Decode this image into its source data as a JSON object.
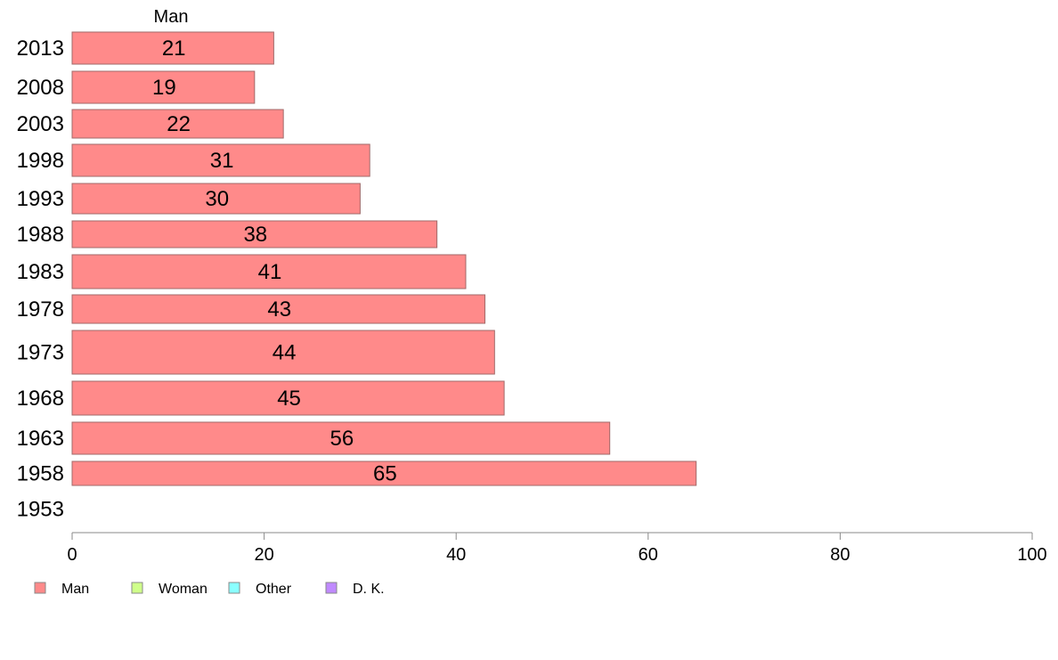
{
  "chart_data": {
    "type": "bar",
    "orientation": "horizontal",
    "title": "",
    "xlabel": "",
    "ylabel": "",
    "xlim": [
      0,
      100
    ],
    "x_ticks": [
      0,
      20,
      40,
      60,
      80,
      100
    ],
    "grid": false,
    "legend_position": "bottom-left",
    "categories": [
      "2013",
      "2008",
      "2003",
      "1998",
      "1993",
      "1988",
      "1983",
      "1978",
      "1973",
      "1968",
      "1963",
      "1958",
      "1953"
    ],
    "series": [
      {
        "name": "Man",
        "color": "#ff8a8a",
        "values": [
          21,
          19,
          22,
          31,
          30,
          38,
          41,
          43,
          44,
          45,
          56,
          65,
          null
        ],
        "labels": [
          "21",
          "19",
          "22",
          "31",
          "30",
          "38",
          "41",
          "43",
          "44",
          "45",
          "56",
          "65",
          ""
        ]
      }
    ],
    "column_header": "Man",
    "legend": [
      {
        "name": "Man",
        "color": "#ff8a8a"
      },
      {
        "name": "Woman",
        "color": "#cfff8a"
      },
      {
        "name": "Other",
        "color": "#8affff"
      },
      {
        "name": "D. K.",
        "color": "#c08aff"
      }
    ]
  }
}
